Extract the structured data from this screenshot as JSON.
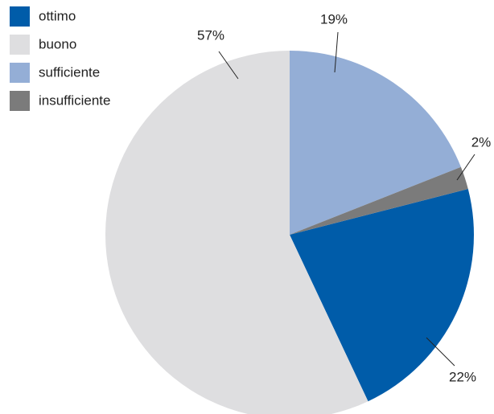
{
  "chart_data": {
    "type": "pie",
    "categories": [
      "ottimo",
      "buono",
      "sufficiente",
      "insufficiente"
    ],
    "values": [
      22,
      57,
      19,
      2
    ],
    "value_labels": [
      "22%",
      "57%",
      "19%",
      "2%"
    ],
    "colors": [
      "#005ca9",
      "#dedee0",
      "#94aed6",
      "#7b7b7b"
    ],
    "startangle": 75.6,
    "legend": "top-left"
  }
}
